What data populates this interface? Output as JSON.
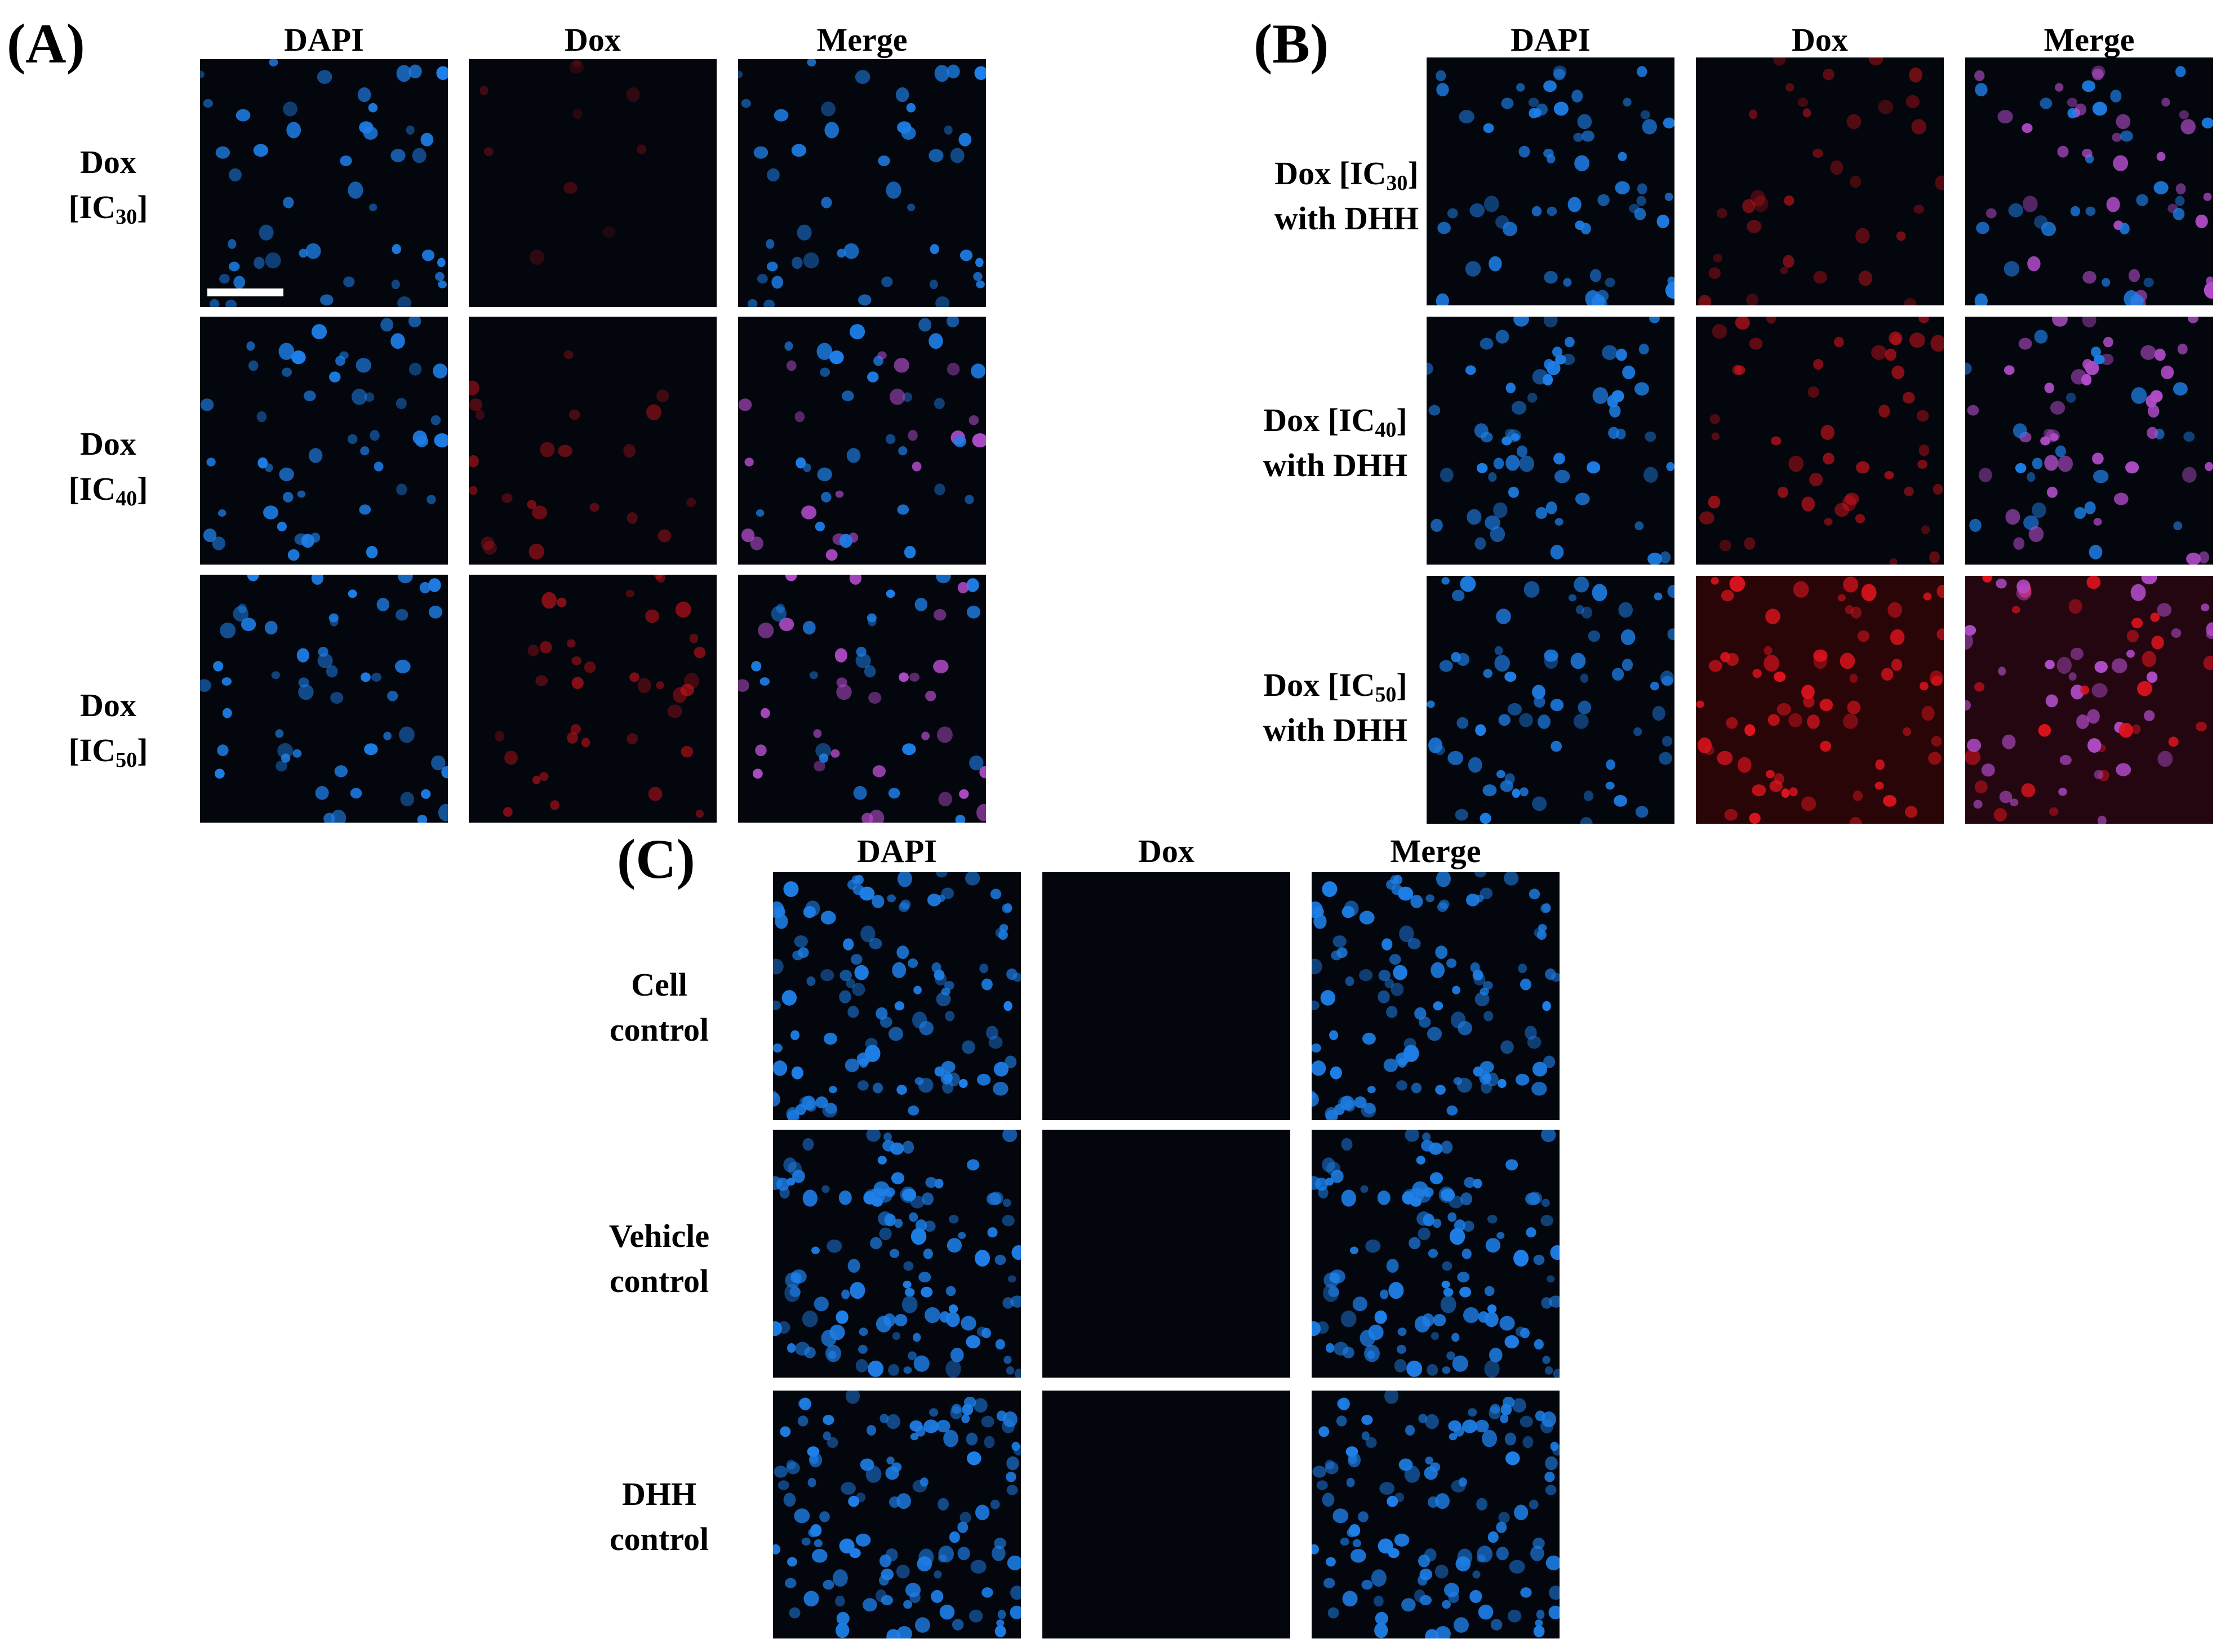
{
  "panels": {
    "a": {
      "label": "(A)",
      "headers": [
        "DAPI",
        "Dox",
        "Merge"
      ],
      "rows": [
        {
          "line1": "Dox",
          "prefix": "[IC",
          "sub": "30",
          "suffix": "]",
          "dox_level": 0.05
        },
        {
          "line1": "Dox",
          "prefix": "[IC",
          "sub": "40",
          "suffix": "]",
          "dox_level": 0.35
        },
        {
          "line1": "Dox",
          "prefix": "[IC",
          "sub": "50",
          "suffix": "]",
          "dox_level": 0.45
        }
      ]
    },
    "b": {
      "label": "(B)",
      "headers": [
        "DAPI",
        "Dox",
        "Merge"
      ],
      "rows": [
        {
          "prefix": "Dox [IC",
          "sub": "30",
          "suffix": "]",
          "line2": "with DHH",
          "dox_level": 0.45
        },
        {
          "prefix": "Dox [IC",
          "sub": "40",
          "suffix": "]",
          "line2": "with DHH",
          "dox_level": 0.55
        },
        {
          "prefix": "Dox [IC",
          "sub": "50",
          "suffix": "]",
          "line2": "with DHH",
          "dox_level": 1.0
        }
      ]
    },
    "c": {
      "label": "(C)",
      "headers": [
        "DAPI",
        "Dox",
        "Merge"
      ],
      "rows": [
        {
          "line1": "Cell",
          "line2": "control",
          "dox_level": 0
        },
        {
          "line1": "Vehicle",
          "line2": "control",
          "dox_level": 0
        },
        {
          "line1": "DHH",
          "line2": "control",
          "dox_level": 0
        }
      ]
    }
  },
  "colors": {
    "background": "#04060d",
    "dapi": "#1e7fe8",
    "dox": "#e0141e",
    "merge": "#b04cc8"
  }
}
